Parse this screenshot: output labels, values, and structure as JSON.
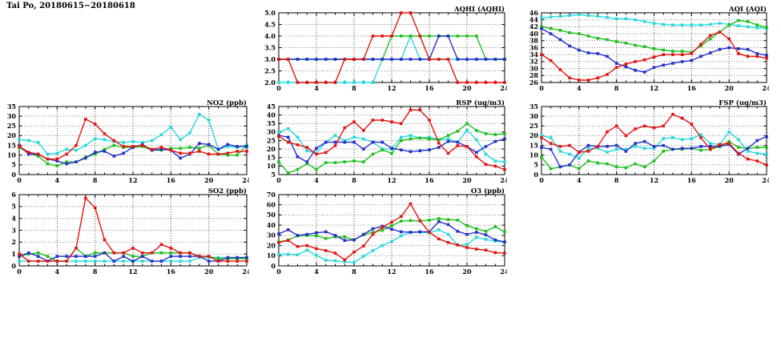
{
  "page_title": "Tai Po, 20180615−20180618",
  "colors": {
    "red": "#e41410",
    "green": "#1fbf1f",
    "blue": "#2430c8",
    "cyan": "#29d8dc",
    "axis": "#000000",
    "grid": "#8a8a8a"
  },
  "x_axis": {
    "min": 0,
    "max": 24,
    "tick_labels": [
      0,
      4,
      8,
      12,
      16,
      20,
      24
    ]
  },
  "chart_data": [
    {
      "id": "aqhi",
      "type": "line",
      "title": "AQHI (AQHI)",
      "ylim": [
        2,
        5
      ],
      "ytick_step": 0.5,
      "ytick_decimals": 1,
      "x_hours": [
        0,
        1,
        2,
        3,
        4,
        5,
        6,
        7,
        8,
        9,
        10,
        11,
        12,
        13,
        14,
        15,
        16,
        17,
        18,
        19,
        20,
        21,
        22,
        23,
        24
      ],
      "series": [
        {
          "name": "series-cyan",
          "color": "#29d8dc",
          "values": [
            2,
            2,
            2,
            2,
            2,
            2,
            2,
            2,
            2,
            2,
            2,
            3,
            3,
            3,
            4,
            3,
            3,
            3,
            3,
            3,
            3,
            3,
            3,
            3,
            3
          ]
        },
        {
          "name": "series-green",
          "color": "#1fbf1f",
          "values": [
            3,
            3,
            3,
            3,
            3,
            3,
            3,
            3,
            3,
            3,
            3,
            3,
            4,
            4,
            4,
            4,
            4,
            4,
            4,
            4,
            4,
            4,
            3,
            3,
            3
          ]
        },
        {
          "name": "series-blue",
          "color": "#2430c8",
          "values": [
            3,
            3,
            3,
            3,
            3,
            3,
            3,
            3,
            3,
            3,
            3,
            3,
            3,
            3,
            3,
            3,
            3,
            4,
            4,
            3,
            3,
            3,
            3,
            3,
            3
          ]
        },
        {
          "name": "series-red",
          "color": "#e41410",
          "values": [
            3,
            3,
            2,
            2,
            2,
            2,
            2,
            3,
            3,
            3,
            4,
            4,
            4,
            5,
            5,
            4,
            3,
            3,
            3,
            2,
            2,
            2,
            2,
            2,
            2
          ]
        }
      ]
    },
    {
      "id": "aqi",
      "type": "line",
      "title": "AQI (AQI)",
      "ylim": [
        26,
        46
      ],
      "ytick_step": 2,
      "ytick_decimals": 0,
      "x_hours": [
        0,
        1,
        2,
        3,
        4,
        5,
        6,
        7,
        8,
        9,
        10,
        11,
        12,
        13,
        14,
        15,
        16,
        17,
        18,
        19,
        20,
        21,
        22,
        23,
        24
      ],
      "series": [
        {
          "name": "series-cyan",
          "color": "#29d8dc",
          "values": [
            44.5,
            44.8,
            45,
            45.2,
            45.5,
            45.2,
            45,
            44.7,
            44.3,
            44.3,
            44,
            43.5,
            43,
            42.7,
            42.5,
            42.5,
            42.5,
            42.5,
            42.7,
            43,
            42.7,
            42.3,
            42,
            41.7,
            41.5
          ]
        },
        {
          "name": "series-green",
          "color": "#1fbf1f",
          "values": [
            42,
            41.5,
            41,
            40.3,
            40,
            39.3,
            38.7,
            38.3,
            37.7,
            37.3,
            36.7,
            36.3,
            35.7,
            35.3,
            35,
            35,
            34.7,
            36.5,
            38.5,
            40.5,
            42.5,
            43.8,
            43.5,
            42.5,
            41.8
          ]
        },
        {
          "name": "series-blue",
          "color": "#2430c8",
          "values": [
            41.5,
            40,
            38.3,
            36.5,
            35.3,
            34.5,
            34.3,
            33.5,
            31.5,
            30.5,
            29.5,
            29,
            30.3,
            31,
            31.5,
            32,
            32.3,
            33.5,
            34.5,
            35.5,
            36,
            35.7,
            35.5,
            34.3,
            33.8
          ]
        },
        {
          "name": "series-red",
          "color": "#e41410",
          "values": [
            34,
            32.3,
            29.7,
            27.3,
            26.7,
            26.7,
            27.3,
            28.3,
            30.3,
            31.3,
            32,
            32.5,
            33.3,
            34,
            34,
            34,
            34.3,
            37,
            39.5,
            40.5,
            38.5,
            34.3,
            33.5,
            33.5,
            33
          ]
        }
      ]
    },
    {
      "id": "no2",
      "type": "line",
      "title": "NO2 (ppb)",
      "ylim": [
        0,
        35
      ],
      "ytick_step": 5,
      "ytick_decimals": 0,
      "x_hours": [
        0,
        1,
        2,
        3,
        4,
        5,
        6,
        7,
        8,
        9,
        10,
        11,
        12,
        13,
        14,
        15,
        16,
        17,
        18,
        19,
        20,
        21,
        22,
        23,
        24
      ],
      "series": [
        {
          "name": "series-cyan",
          "color": "#29d8dc",
          "values": [
            18,
            17.5,
            16.5,
            10.5,
            11,
            13,
            12.5,
            15,
            18.5,
            18,
            17,
            16.5,
            17,
            16.5,
            17.5,
            20.5,
            24.5,
            18,
            21.5,
            31,
            28,
            13,
            14.5,
            14,
            15
          ]
        },
        {
          "name": "series-green",
          "color": "#1fbf1f",
          "values": [
            14,
            11,
            9.5,
            5.5,
            4.5,
            6.5,
            6.5,
            9,
            10.5,
            13,
            15,
            14,
            14,
            14.5,
            12.5,
            12.5,
            13.5,
            13.5,
            14,
            13.5,
            15,
            10.5,
            10,
            10,
            15
          ]
        },
        {
          "name": "series-blue",
          "color": "#2430c8",
          "values": [
            15,
            10.5,
            10.5,
            8,
            7,
            5.5,
            6.5,
            8.5,
            11.5,
            12,
            9.5,
            11,
            14,
            15.5,
            12.5,
            13,
            12.5,
            8.5,
            10.5,
            16,
            15.5,
            13,
            15.5,
            14.5,
            14.5
          ]
        },
        {
          "name": "series-red",
          "color": "#e41410",
          "values": [
            14.5,
            11.5,
            10.5,
            8,
            8,
            10.5,
            15,
            28.5,
            26,
            21,
            17.5,
            14.5,
            14.5,
            15,
            13,
            14,
            12.5,
            11,
            11,
            12,
            10.5,
            10.5,
            11,
            12,
            12
          ]
        }
      ]
    },
    {
      "id": "rsp",
      "type": "line",
      "title": "RSP (ug/m3)",
      "ylim": [
        5,
        45
      ],
      "ytick_step": 5,
      "ytick_decimals": 0,
      "x_hours": [
        0,
        1,
        2,
        3,
        4,
        5,
        6,
        7,
        8,
        9,
        10,
        11,
        12,
        13,
        14,
        15,
        16,
        17,
        18,
        19,
        20,
        21,
        22,
        23,
        24
      ],
      "series": [
        {
          "name": "series-cyan",
          "color": "#29d8dc",
          "values": [
            30,
            32,
            27,
            19,
            17.5,
            24,
            28,
            25,
            27,
            26,
            24,
            20,
            20,
            27,
            28,
            26.5,
            27,
            25.5,
            26,
            24,
            31,
            25.5,
            17,
            13,
            12.5
          ]
        },
        {
          "name": "series-green",
          "color": "#1fbf1f",
          "values": [
            12.5,
            6,
            8,
            11.5,
            8,
            12,
            12,
            12.5,
            13,
            12.5,
            17,
            19.5,
            17.5,
            25,
            26,
            26.5,
            26,
            25.5,
            28,
            30.5,
            35,
            31,
            29,
            28.5,
            29
          ]
        },
        {
          "name": "series-blue",
          "color": "#2430c8",
          "values": [
            28,
            27,
            15.5,
            12.5,
            20.5,
            24,
            24,
            24,
            24,
            20,
            24,
            24,
            20.5,
            19.5,
            18.5,
            19,
            19.5,
            21,
            24.5,
            24,
            21.5,
            18,
            21.5,
            24.5,
            26
          ]
        },
        {
          "name": "series-red",
          "color": "#e41410",
          "values": [
            27.5,
            24,
            22.5,
            21,
            17,
            18,
            22,
            32.5,
            36,
            31,
            37,
            37,
            36,
            35,
            43,
            43,
            37,
            23.5,
            17.5,
            22,
            21.5,
            15.5,
            11,
            10,
            8
          ]
        }
      ]
    },
    {
      "id": "fsp",
      "type": "line",
      "title": "FSP (ug/m3)",
      "ylim": [
        0,
        35
      ],
      "ytick_step": 5,
      "ytick_decimals": 0,
      "x_hours": [
        0,
        1,
        2,
        3,
        4,
        5,
        6,
        7,
        8,
        9,
        10,
        11,
        12,
        13,
        14,
        15,
        16,
        17,
        18,
        19,
        20,
        21,
        22,
        23,
        24
      ],
      "series": [
        {
          "name": "series-cyan",
          "color": "#29d8dc",
          "values": [
            20,
            19,
            12,
            10.5,
            8.5,
            13.5,
            13.5,
            11.5,
            13,
            13,
            14.5,
            13.5,
            13.5,
            18.5,
            19,
            18,
            18.5,
            20.5,
            16,
            15.5,
            22,
            18,
            12,
            11,
            10.5
          ]
        },
        {
          "name": "series-green",
          "color": "#1fbf1f",
          "values": [
            9,
            3,
            4,
            5,
            3,
            7,
            6,
            5.5,
            4,
            3.5,
            5.5,
            4,
            7,
            12,
            13,
            13,
            13.5,
            12.5,
            13,
            14.5,
            17,
            14,
            13.5,
            14,
            14
          ]
        },
        {
          "name": "series-blue",
          "color": "#2430c8",
          "values": [
            14,
            13,
            4,
            5,
            11.5,
            15,
            14.5,
            14.5,
            15,
            12,
            16,
            17,
            14.5,
            15,
            13,
            13.5,
            13.5,
            14.5,
            14.5,
            14.5,
            15.5,
            10.5,
            13.5,
            17.5,
            19.5
          ]
        },
        {
          "name": "series-red",
          "color": "#e41410",
          "values": [
            19,
            16,
            14.5,
            15,
            11.5,
            12,
            14.5,
            22,
            25,
            20,
            23.5,
            25,
            24,
            25,
            31,
            29,
            26,
            19,
            13,
            15.5,
            16,
            11,
            8,
            7,
            5
          ]
        }
      ]
    },
    {
      "id": "so2",
      "type": "line",
      "title": "SO2 (ppb)",
      "ylim": [
        0,
        6
      ],
      "ytick_step": 1,
      "ytick_decimals": 0,
      "x_hours": [
        0,
        1,
        2,
        3,
        4,
        5,
        6,
        7,
        8,
        9,
        10,
        11,
        12,
        13,
        14,
        15,
        16,
        17,
        18,
        19,
        20,
        21,
        22,
        23,
        24
      ],
      "series": [
        {
          "name": "series-cyan",
          "color": "#29d8dc",
          "values": [
            0.4,
            0.4,
            0.4,
            0.4,
            0.4,
            0.4,
            0.4,
            0.4,
            0.4,
            0.4,
            0.4,
            0.4,
            0.4,
            0.4,
            0.4,
            0.4,
            0.4,
            0.4,
            0.4,
            0.7,
            0.7,
            0.7,
            0.7,
            0.7,
            0.7
          ]
        },
        {
          "name": "series-green",
          "color": "#1fbf1f",
          "values": [
            0.8,
            1,
            1.1,
            0.8,
            0.4,
            0.4,
            1.5,
            0.8,
            1.1,
            1.1,
            1.1,
            1.1,
            0.8,
            0.8,
            1.1,
            1.1,
            1.1,
            1.1,
            1.1,
            0.8,
            0.8,
            0.6,
            0.6,
            0.6,
            0.6
          ]
        },
        {
          "name": "series-blue",
          "color": "#2430c8",
          "values": [
            0.8,
            1.1,
            0.8,
            0.4,
            0.8,
            0.8,
            0.8,
            0.8,
            0.8,
            1.1,
            0.4,
            0.8,
            0.4,
            0.8,
            0.4,
            0.4,
            0.8,
            0.8,
            0.8,
            0.8,
            0.4,
            0.4,
            0.7,
            0.7,
            0.7
          ]
        },
        {
          "name": "series-red",
          "color": "#e41410",
          "values": [
            1,
            0.4,
            0.4,
            0.4,
            0.4,
            0.4,
            1.5,
            5.7,
            4.9,
            2.2,
            1.1,
            1.1,
            1.5,
            1.1,
            1.1,
            1.8,
            1.5,
            1.1,
            1.1,
            0.8,
            0.8,
            0.4,
            0.4,
            0.4,
            0.4
          ]
        }
      ]
    },
    {
      "id": "o3",
      "type": "line",
      "title": "O3 (ppb)",
      "ylim": [
        0,
        70
      ],
      "ytick_step": 10,
      "ytick_decimals": 0,
      "x_hours": [
        0,
        1,
        2,
        3,
        4,
        5,
        6,
        7,
        8,
        9,
        10,
        11,
        12,
        13,
        14,
        15,
        16,
        17,
        18,
        19,
        20,
        21,
        22,
        23,
        24
      ],
      "series": [
        {
          "name": "series-cyan",
          "color": "#29d8dc",
          "values": [
            11.5,
            11.5,
            11,
            15.5,
            10.5,
            5.5,
            5,
            4,
            3.5,
            9.5,
            15,
            20,
            24,
            29.5,
            33,
            33,
            32.5,
            35.5,
            31,
            20.5,
            21,
            28,
            26,
            24.5,
            23
          ]
        },
        {
          "name": "series-green",
          "color": "#1fbf1f",
          "values": [
            23.5,
            25.5,
            29.5,
            30,
            29.5,
            27,
            28.5,
            28.5,
            25.5,
            30.5,
            33,
            35,
            39.5,
            44,
            44.5,
            44,
            45,
            46.5,
            45.5,
            45,
            39.5,
            36.5,
            34,
            38.5,
            33.5
          ]
        },
        {
          "name": "series-blue",
          "color": "#2430c8",
          "values": [
            31.5,
            35.5,
            30,
            31,
            32.5,
            33.5,
            30,
            25,
            25.5,
            31,
            36.5,
            39,
            36,
            33.5,
            33,
            33.5,
            33.5,
            43.5,
            40.5,
            34,
            31,
            33,
            30.5,
            25.5,
            23.5
          ]
        },
        {
          "name": "series-red",
          "color": "#e41410",
          "values": [
            23,
            25,
            19,
            20,
            17,
            15,
            12.5,
            6,
            13.5,
            19.5,
            31,
            38,
            43,
            48.5,
            61,
            44.5,
            33,
            26.5,
            23,
            20.5,
            18,
            16.5,
            15.5,
            13,
            12.5
          ]
        }
      ]
    }
  ]
}
